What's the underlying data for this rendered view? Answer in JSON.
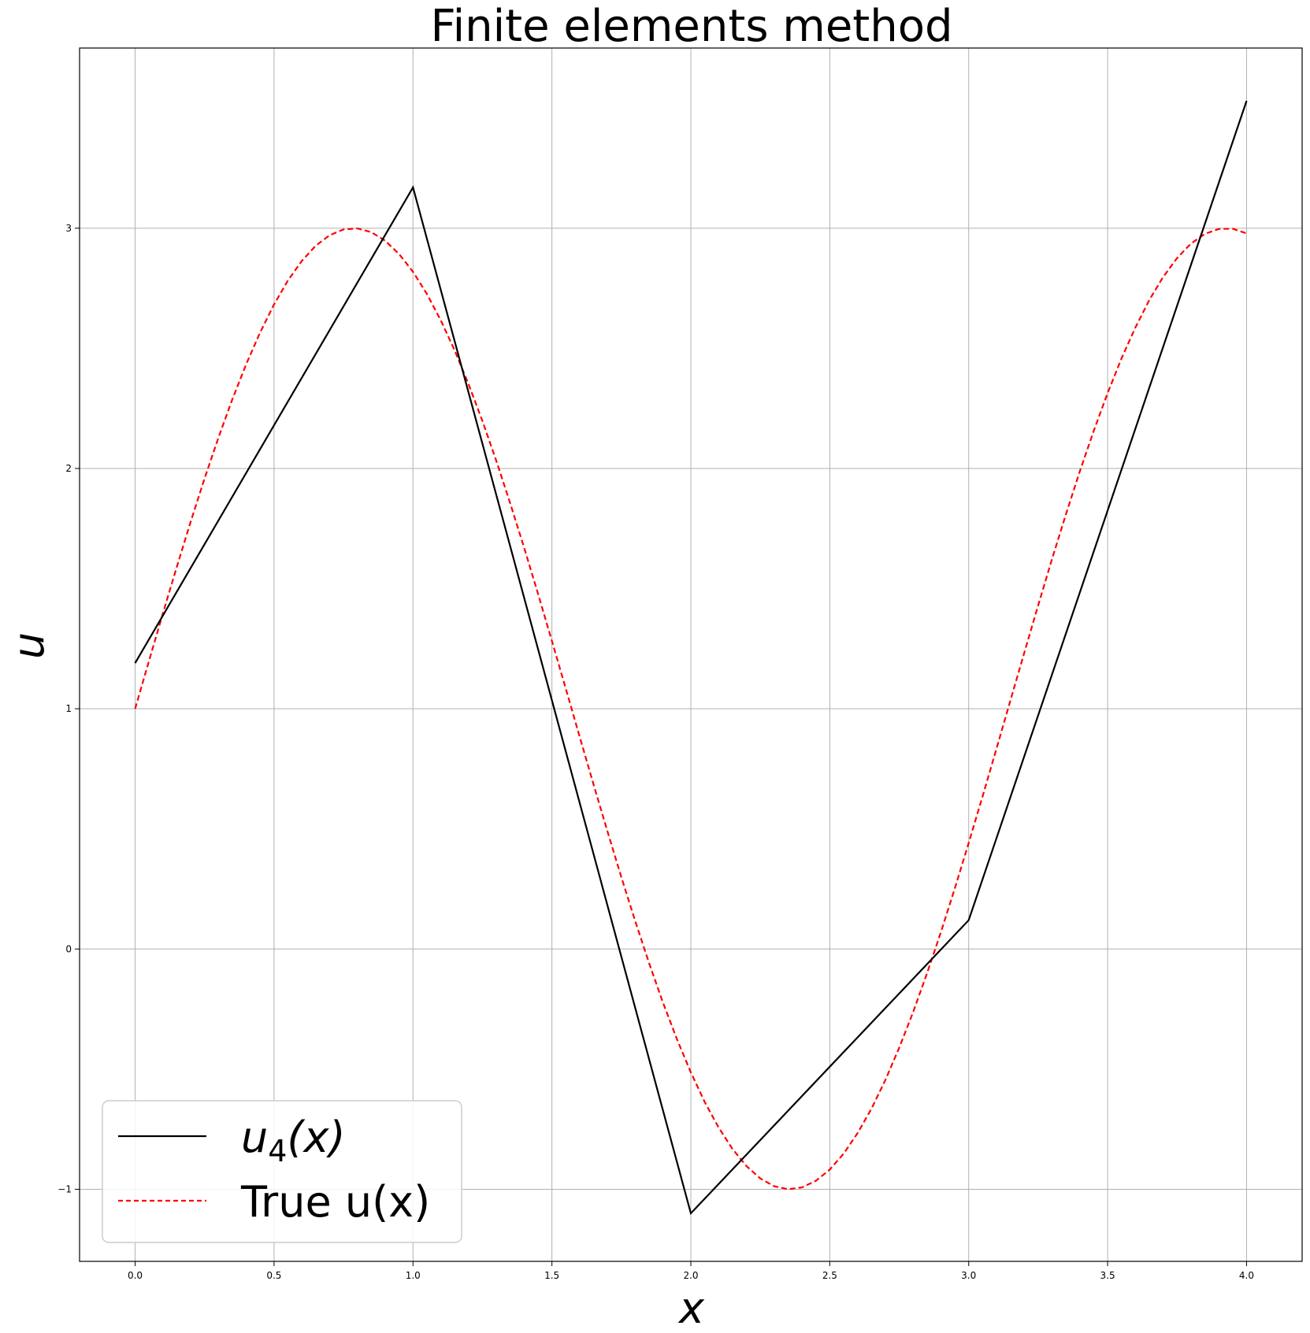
{
  "chart_data": {
    "type": "line",
    "title": "Finite elements method",
    "xlabel": "x",
    "ylabel": "u",
    "xlim": [
      -0.2,
      4.2
    ],
    "ylim": [
      -1.3,
      3.75
    ],
    "grid": true,
    "legend_position": "lower-left",
    "x_ticks": [
      0.0,
      0.5,
      1.0,
      1.5,
      2.0,
      2.5,
      3.0,
      3.5,
      4.0
    ],
    "x_tick_labels": [
      "0.0",
      "0.5",
      "1.0",
      "1.5",
      "2.0",
      "2.5",
      "3.0",
      "3.5",
      "4.0"
    ],
    "y_ticks": [
      -1,
      0,
      1,
      2,
      3
    ],
    "y_tick_labels": [
      "−1",
      "0",
      "1",
      "2",
      "3"
    ],
    "series": [
      {
        "name": "u4(x)",
        "legend_main": "u",
        "legend_sub": "4",
        "legend_rest": "(x)",
        "color": "#000000",
        "style": "solid",
        "x": [
          0,
          1,
          2,
          3,
          4
        ],
        "y": [
          1.19,
          3.17,
          -1.1,
          0.12,
          3.53
        ]
      },
      {
        "name": "True u(x)",
        "legend_label": "True u(x)",
        "color": "#ff0000",
        "style": "dashed",
        "function": "1 + 2*sin(2x)",
        "x_range": [
          0,
          4
        ],
        "samples": 80
      }
    ]
  }
}
